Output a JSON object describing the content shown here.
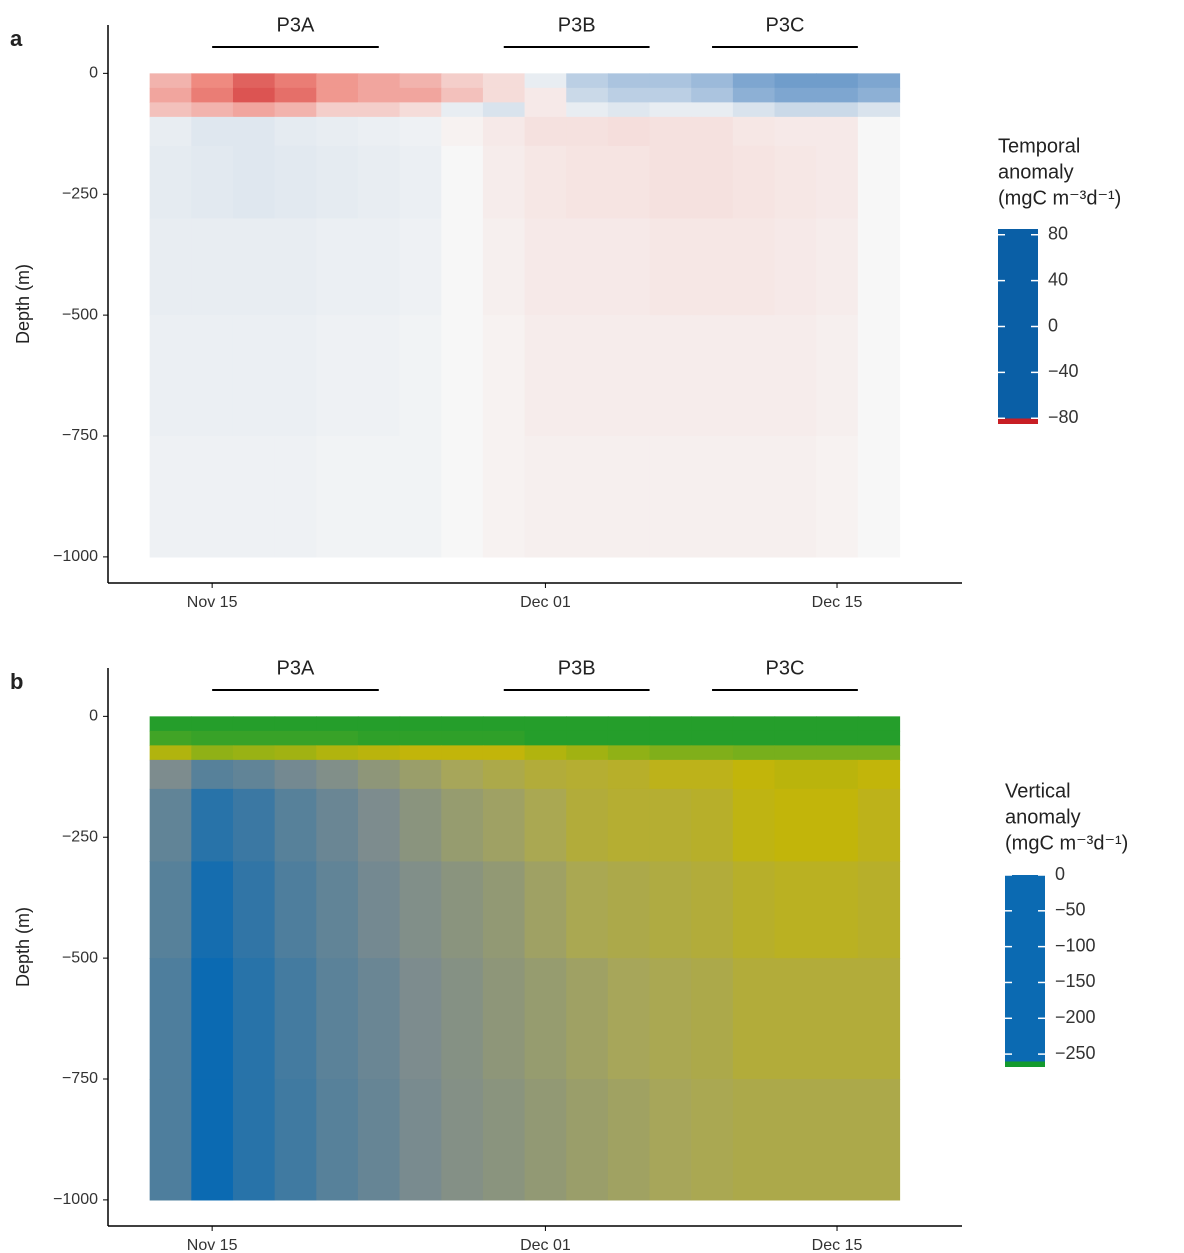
{
  "chart_data": [
    {
      "type": "heatmap",
      "panel": "a",
      "ylabel": "Depth (m)",
      "x": [
        "Nov 13",
        "Nov 15",
        "Nov 17",
        "Nov 19",
        "Nov 21",
        "Nov 23",
        "Nov 25",
        "Nov 27",
        "Nov 29",
        "Dec 01",
        "Dec 03",
        "Dec 05",
        "Dec 07",
        "Dec 09",
        "Dec 11",
        "Dec 13",
        "Dec 15",
        "Dec 17"
      ],
      "ybins": [
        0,
        -30,
        -60,
        -90,
        -150,
        -300,
        -500,
        -750,
        -1000
      ],
      "values": [
        [
          25,
          40,
          55,
          45,
          35,
          30,
          25,
          15,
          10,
          -5,
          -20,
          -25,
          -25,
          -30,
          -40,
          -45,
          -45,
          -40
        ],
        [
          30,
          45,
          60,
          50,
          35,
          30,
          30,
          20,
          10,
          5,
          -15,
          -20,
          -20,
          -25,
          -35,
          -40,
          -40,
          -35
        ],
        [
          20,
          25,
          30,
          25,
          15,
          15,
          10,
          -5,
          -10,
          5,
          -5,
          -8,
          -5,
          -5,
          -10,
          -15,
          -15,
          -10
        ],
        [
          -5,
          -8,
          -8,
          -6,
          -5,
          -4,
          -3,
          2,
          5,
          8,
          8,
          9,
          8,
          8,
          6,
          5,
          5,
          0
        ],
        [
          -6,
          -7,
          -8,
          -7,
          -6,
          -5,
          -4,
          0,
          4,
          6,
          7,
          7,
          8,
          8,
          7,
          6,
          5,
          0
        ],
        [
          -5,
          -5,
          -5,
          -5,
          -4,
          -4,
          -3,
          0,
          3,
          5,
          5,
          5,
          6,
          6,
          6,
          5,
          4,
          0
        ],
        [
          -4,
          -4,
          -4,
          -4,
          -3,
          -3,
          -2,
          0,
          2,
          4,
          4,
          4,
          4,
          4,
          4,
          4,
          3,
          0
        ],
        [
          -3,
          -3,
          -3,
          -3,
          -2,
          -2,
          -2,
          0,
          2,
          3,
          3,
          3,
          3,
          3,
          3,
          3,
          2,
          0
        ]
      ],
      "xlim": [
        "Nov 10",
        "Dec 21"
      ],
      "xticks": [
        "Nov 15",
        "Dec 01",
        "Dec 15"
      ],
      "ylim": [
        -1054,
        100
      ],
      "yticks": [
        {
          "value": 0,
          "label": "0"
        },
        {
          "value": -250,
          "label": "−250"
        },
        {
          "value": -500,
          "label": "−500"
        },
        {
          "value": -750,
          "label": "−750"
        },
        {
          "value": -1000,
          "label": "−1000"
        }
      ],
      "periods": [
        {
          "label": "P3A",
          "start": "Nov 15",
          "end": "Nov 23"
        },
        {
          "label": "P3B",
          "start": "Nov 29",
          "end": "Dec 06"
        },
        {
          "label": "P3C",
          "start": "Dec 09",
          "end": "Dec 16"
        }
      ],
      "legend_title": [
        "Temporal",
        "anomaly",
        "(mgC   m⁻³d⁻¹)"
      ],
      "clim": [
        -85,
        85
      ],
      "colorscale": [
        {
          "value": -80,
          "color": "#0a5fa6"
        },
        {
          "value": -40,
          "color": "#7ea6d0"
        },
        {
          "value": 0,
          "color": "#f7f7f7"
        },
        {
          "value": 40,
          "color": "#ef8a80"
        },
        {
          "value": 80,
          "color": "#c81e24"
        }
      ],
      "cticks": [
        {
          "value": 80,
          "label": "80"
        },
        {
          "value": 40,
          "label": "40"
        },
        {
          "value": 0,
          "label": "0"
        },
        {
          "value": -40,
          "label": "−40"
        },
        {
          "value": -80,
          "label": "−80"
        }
      ]
    },
    {
      "type": "heatmap",
      "panel": "b",
      "ylabel": "Depth (m)",
      "x": [
        "Nov 13",
        "Nov 15",
        "Nov 17",
        "Nov 19",
        "Nov 21",
        "Nov 23",
        "Nov 25",
        "Nov 27",
        "Nov 29",
        "Dec 01",
        "Dec 03",
        "Dec 05",
        "Dec 07",
        "Dec 09",
        "Dec 11",
        "Dec 13",
        "Dec 15",
        "Dec 17"
      ],
      "ybins": [
        0,
        -30,
        -60,
        -90,
        -150,
        -300,
        -500,
        -750,
        -1000
      ],
      "values": [
        [
          -10,
          -10,
          -10,
          -10,
          -10,
          -10,
          -10,
          -10,
          -10,
          -10,
          -10,
          -10,
          -10,
          -10,
          -10,
          -10,
          -10,
          -10
        ],
        [
          -25,
          -20,
          -20,
          -20,
          -20,
          -15,
          -15,
          -15,
          -15,
          -10,
          -10,
          -10,
          -10,
          -10,
          -10,
          -10,
          -10,
          -10
        ],
        [
          -90,
          -70,
          -75,
          -80,
          -90,
          -95,
          -100,
          -100,
          -100,
          -90,
          -80,
          -70,
          -60,
          -60,
          -55,
          -55,
          -55,
          -55
        ],
        [
          -200,
          -220,
          -215,
          -205,
          -195,
          -180,
          -165,
          -150,
          -140,
          -130,
          -125,
          -120,
          -110,
          -110,
          -100,
          -95,
          -95,
          -100
        ],
        [
          -215,
          -245,
          -235,
          -220,
          -210,
          -200,
          -185,
          -170,
          -160,
          -145,
          -130,
          -125,
          -125,
          -120,
          -105,
          -100,
          -100,
          -110
        ],
        [
          -220,
          -255,
          -240,
          -225,
          -215,
          -205,
          -195,
          -185,
          -175,
          -160,
          -145,
          -140,
          -135,
          -130,
          -120,
          -115,
          -115,
          -120
        ],
        [
          -225,
          -260,
          -245,
          -230,
          -218,
          -210,
          -200,
          -190,
          -180,
          -170,
          -160,
          -150,
          -145,
          -140,
          -130,
          -130,
          -130,
          -130
        ],
        [
          -225,
          -262,
          -245,
          -232,
          -220,
          -212,
          -202,
          -192,
          -185,
          -175,
          -165,
          -158,
          -150,
          -145,
          -140,
          -140,
          -140,
          -140
        ]
      ],
      "xlim": [
        "Nov 10",
        "Dec 21"
      ],
      "xticks": [
        "Nov 15",
        "Dec 01",
        "Dec 15"
      ],
      "ylim": [
        -1054,
        100
      ],
      "yticks": [
        {
          "value": 0,
          "label": "0"
        },
        {
          "value": -250,
          "label": "−250"
        },
        {
          "value": -500,
          "label": "−500"
        },
        {
          "value": -750,
          "label": "−750"
        },
        {
          "value": -1000,
          "label": "−1000"
        }
      ],
      "periods": [
        {
          "label": "P3A",
          "start": "Nov 15",
          "end": "Nov 23"
        },
        {
          "label": "P3B",
          "start": "Nov 29",
          "end": "Dec 06"
        },
        {
          "label": "P3C",
          "start": "Dec 09",
          "end": "Dec 16"
        }
      ],
      "legend_title": [
        "Vertical",
        "anomaly",
        "(mgC   m⁻³d⁻¹)"
      ],
      "clim": [
        -268,
        0
      ],
      "colorscale": [
        {
          "value": -260,
          "color": "#0b6ab2"
        },
        {
          "value": -200,
          "color": "#7d8c8e"
        },
        {
          "value": -150,
          "color": "#a7a65a"
        },
        {
          "value": -100,
          "color": "#c2b50a"
        },
        {
          "value": -50,
          "color": "#6fae1e"
        },
        {
          "value": 0,
          "color": "#139a2e"
        }
      ],
      "cticks": [
        {
          "value": 0,
          "label": "0"
        },
        {
          "value": -50,
          "label": "−50"
        },
        {
          "value": -100,
          "label": "−100"
        },
        {
          "value": -150,
          "label": "−150"
        },
        {
          "value": -200,
          "label": "−200"
        },
        {
          "value": -250,
          "label": "−250"
        }
      ]
    }
  ]
}
